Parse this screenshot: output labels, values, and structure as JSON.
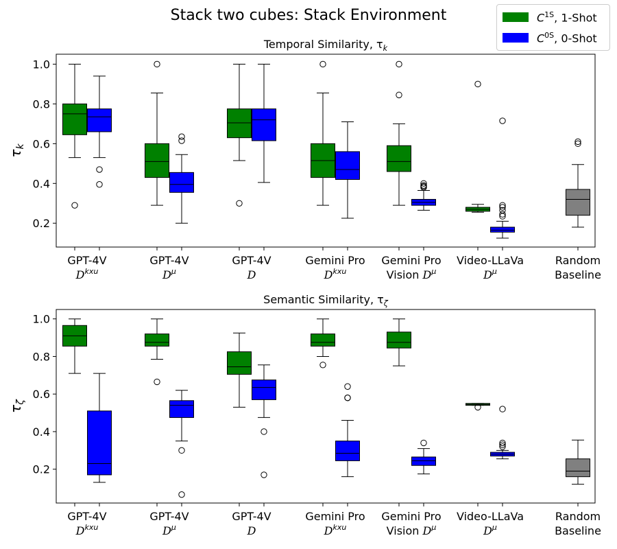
{
  "figure_title": "Stack two cubes: Stack Environment",
  "legend": [
    {
      "color": "#008000",
      "symbol": "C",
      "sup": "1S",
      "label": ", 1-Shot"
    },
    {
      "color": "#0000ff",
      "symbol": "C",
      "sup": "0S",
      "label": ", 0-Shot"
    }
  ],
  "colors": {
    "one_shot": "#008000",
    "zero_shot": "#0000ff",
    "baseline": "#808080"
  },
  "chart_data": [
    {
      "type": "box",
      "title": "Temporal Similarity, τ",
      "title_sub": "k",
      "ylabel": "τ",
      "ylabel_sub": "k",
      "ylim": [
        0.08,
        1.05
      ],
      "yticks": [
        "0.2",
        "0.4",
        "0.6",
        "0.8",
        "1.0"
      ],
      "groups": [
        {
          "label1": "GPT-4V",
          "label2": "D",
          "label2_sup": "kxu"
        },
        {
          "label1": "GPT-4V",
          "label2": "D",
          "label2_sup": "μ"
        },
        {
          "label1": "GPT-4V",
          "label2": "D",
          "label2_sup": ""
        },
        {
          "label1": "Gemini Pro",
          "label2": "D",
          "label2_sup": "kxu"
        },
        {
          "label1": "Gemini Pro",
          "label2": "Vision D",
          "label2_sup": "μ"
        },
        {
          "label1": "Video-LLaVa",
          "label2": "D",
          "label2_sup": "μ"
        },
        {
          "label1": "Random",
          "label2": "Baseline",
          "label2_sup": ""
        }
      ],
      "boxes": [
        {
          "group": 0,
          "series": "1-Shot",
          "whislo": 0.53,
          "q1": 0.645,
          "med": 0.75,
          "q3": 0.8,
          "whishi": 1.0,
          "fliers": [
            0.29
          ]
        },
        {
          "group": 0,
          "series": "0-Shot",
          "whislo": 0.53,
          "q1": 0.66,
          "med": 0.735,
          "q3": 0.775,
          "whishi": 0.94,
          "fliers": [
            0.47,
            0.395
          ]
        },
        {
          "group": 1,
          "series": "1-Shot",
          "whislo": 0.29,
          "q1": 0.43,
          "med": 0.51,
          "q3": 0.6,
          "whishi": 0.855,
          "fliers": [
            1.0
          ]
        },
        {
          "group": 1,
          "series": "0-Shot",
          "whislo": 0.2,
          "q1": 0.355,
          "med": 0.395,
          "q3": 0.455,
          "whishi": 0.545,
          "fliers": [
            0.635,
            0.615
          ]
        },
        {
          "group": 2,
          "series": "1-Shot",
          "whislo": 0.515,
          "q1": 0.63,
          "med": 0.705,
          "q3": 0.775,
          "whishi": 1.0,
          "fliers": [
            0.3
          ]
        },
        {
          "group": 2,
          "series": "0-Shot",
          "whislo": 0.405,
          "q1": 0.615,
          "med": 0.72,
          "q3": 0.775,
          "whishi": 1.0,
          "fliers": []
        },
        {
          "group": 3,
          "series": "1-Shot",
          "whislo": 0.29,
          "q1": 0.43,
          "med": 0.515,
          "q3": 0.6,
          "whishi": 0.855,
          "fliers": [
            1.0
          ]
        },
        {
          "group": 3,
          "series": "0-Shot",
          "whislo": 0.225,
          "q1": 0.42,
          "med": 0.47,
          "q3": 0.56,
          "whishi": 0.71,
          "fliers": []
        },
        {
          "group": 4,
          "series": "1-Shot",
          "whislo": 0.29,
          "q1": 0.46,
          "med": 0.51,
          "q3": 0.59,
          "whishi": 0.7,
          "fliers": [
            1.0,
            0.845
          ]
        },
        {
          "group": 4,
          "series": "0-Shot",
          "whislo": 0.265,
          "q1": 0.29,
          "med": 0.305,
          "q3": 0.32,
          "whishi": 0.365,
          "fliers": [
            0.38,
            0.385,
            0.39,
            0.4
          ]
        },
        {
          "group": 5,
          "series": "1-Shot",
          "whislo": 0.255,
          "q1": 0.26,
          "med": 0.27,
          "q3": 0.28,
          "whishi": 0.295,
          "fliers": [
            0.9
          ]
        },
        {
          "group": 5,
          "series": "0-Shot",
          "whislo": 0.125,
          "q1": 0.155,
          "med": 0.165,
          "q3": 0.18,
          "whishi": 0.21,
          "fliers": [
            0.235,
            0.245,
            0.265,
            0.28,
            0.29,
            0.715
          ]
        },
        {
          "group": 6,
          "series": "Baseline",
          "whislo": 0.18,
          "q1": 0.24,
          "med": 0.32,
          "q3": 0.37,
          "whishi": 0.495,
          "fliers": [
            0.6,
            0.61
          ]
        }
      ]
    },
    {
      "type": "box",
      "title": "Semantic Similarity, τ",
      "title_sub": "ζ",
      "ylabel": "τ",
      "ylabel_sub": "ζ",
      "ylim": [
        0.02,
        1.05
      ],
      "yticks": [
        "0.2",
        "0.4",
        "0.6",
        "0.8",
        "1.0"
      ],
      "groups": [
        {
          "label1": "GPT-4V",
          "label2": "D",
          "label2_sup": "kxu"
        },
        {
          "label1": "GPT-4V",
          "label2": "D",
          "label2_sup": "μ"
        },
        {
          "label1": "GPT-4V",
          "label2": "D",
          "label2_sup": ""
        },
        {
          "label1": "Gemini Pro",
          "label2": "D",
          "label2_sup": "kxu"
        },
        {
          "label1": "Gemini Pro",
          "label2": "Vision D",
          "label2_sup": "μ"
        },
        {
          "label1": "Video-LLaVa",
          "label2": "D",
          "label2_sup": "μ"
        },
        {
          "label1": "Random",
          "label2": "Baseline",
          "label2_sup": ""
        }
      ],
      "boxes": [
        {
          "group": 0,
          "series": "1-Shot",
          "whislo": 0.71,
          "q1": 0.855,
          "med": 0.91,
          "q3": 0.965,
          "whishi": 1.0,
          "fliers": []
        },
        {
          "group": 0,
          "series": "0-Shot",
          "whislo": 0.13,
          "q1": 0.17,
          "med": 0.23,
          "q3": 0.51,
          "whishi": 0.71,
          "fliers": []
        },
        {
          "group": 1,
          "series": "1-Shot",
          "whislo": 0.785,
          "q1": 0.855,
          "med": 0.875,
          "q3": 0.92,
          "whishi": 1.0,
          "fliers": [
            0.665
          ]
        },
        {
          "group": 1,
          "series": "0-Shot",
          "whislo": 0.35,
          "q1": 0.475,
          "med": 0.54,
          "q3": 0.565,
          "whishi": 0.62,
          "fliers": [
            0.3,
            0.065
          ]
        },
        {
          "group": 2,
          "series": "1-Shot",
          "whislo": 0.53,
          "q1": 0.705,
          "med": 0.745,
          "q3": 0.825,
          "whishi": 0.925,
          "fliers": []
        },
        {
          "group": 2,
          "series": "0-Shot",
          "whislo": 0.475,
          "q1": 0.57,
          "med": 0.635,
          "q3": 0.675,
          "whishi": 0.755,
          "fliers": [
            0.4,
            0.17
          ]
        },
        {
          "group": 3,
          "series": "1-Shot",
          "whislo": 0.8,
          "q1": 0.855,
          "med": 0.875,
          "q3": 0.92,
          "whishi": 1.0,
          "fliers": [
            0.755
          ]
        },
        {
          "group": 3,
          "series": "0-Shot",
          "whislo": 0.16,
          "q1": 0.245,
          "med": 0.285,
          "q3": 0.35,
          "whishi": 0.46,
          "fliers": [
            0.58,
            0.58,
            0.64
          ]
        },
        {
          "group": 4,
          "series": "1-Shot",
          "whislo": 0.75,
          "q1": 0.845,
          "med": 0.875,
          "q3": 0.93,
          "whishi": 1.0,
          "fliers": []
        },
        {
          "group": 4,
          "series": "0-Shot",
          "whislo": 0.175,
          "q1": 0.22,
          "med": 0.245,
          "q3": 0.265,
          "whishi": 0.31,
          "fliers": [
            0.34
          ]
        },
        {
          "group": 5,
          "series": "1-Shot",
          "whislo": 0.54,
          "q1": 0.54,
          "med": 0.545,
          "q3": 0.55,
          "whishi": 0.55,
          "fliers": [
            0.53
          ]
        },
        {
          "group": 5,
          "series": "0-Shot",
          "whislo": 0.255,
          "q1": 0.27,
          "med": 0.28,
          "q3": 0.29,
          "whishi": 0.3,
          "fliers": [
            0.32,
            0.33,
            0.34,
            0.52
          ]
        },
        {
          "group": 6,
          "series": "Baseline",
          "whislo": 0.12,
          "q1": 0.16,
          "med": 0.19,
          "q3": 0.255,
          "whishi": 0.355,
          "fliers": []
        }
      ]
    }
  ]
}
